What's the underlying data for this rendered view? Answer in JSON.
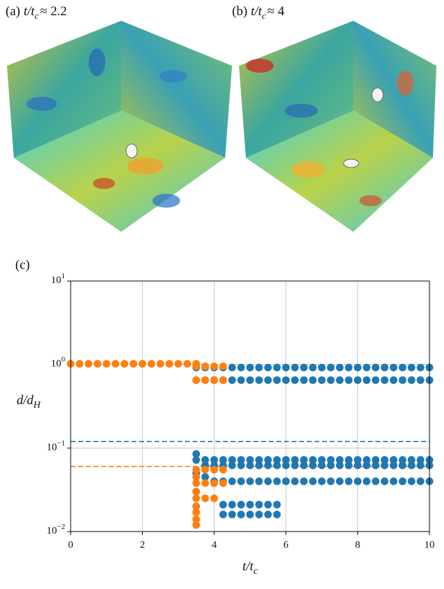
{
  "panels": [
    {
      "tag": "(a)",
      "text": "t/t",
      "sub": "c",
      "rest": "≈ 2.2"
    },
    {
      "tag": "(b)",
      "text": "t/t",
      "sub": "c",
      "rest": "≈ 4"
    }
  ],
  "chart_data": {
    "type": "scatter",
    "tag": "(c)",
    "xlabel": {
      "text": "t/t",
      "sub": "c"
    },
    "ylabel": {
      "text": "d/d",
      "sub": "H"
    },
    "xlim": [
      0,
      10
    ],
    "xticks": [
      0,
      2,
      4,
      6,
      8,
      10
    ],
    "ylim": [
      0.01,
      10
    ],
    "yticks": [
      {
        "value": 0.01,
        "label": "10",
        "exponent": "−2"
      },
      {
        "value": 0.1,
        "label": "10",
        "exponent": "−1"
      },
      {
        "value": 1,
        "label": "10",
        "exponent": "0"
      },
      {
        "value": 10,
        "label": "10",
        "exponent": "1"
      }
    ],
    "log_y": true,
    "grid": true,
    "hlines": [
      {
        "value": 0.12,
        "color": "#1f77b4",
        "dashed": true
      },
      {
        "value": 0.06,
        "color": "#ff7f0e",
        "dashed": true
      }
    ],
    "series": [
      {
        "color": "#1f77b4",
        "x": [
          3.5,
          3.75,
          4,
          4.25,
          4.5,
          4.75,
          5,
          5.25,
          5.5,
          5.75,
          6,
          6.25,
          6.5,
          6.75,
          7,
          7.25,
          7.5,
          7.75,
          8,
          8.25,
          8.5,
          8.75,
          9,
          9.25,
          9.5,
          9.75,
          10
        ],
        "values": [
          0.92,
          0.92,
          0.92,
          0.92,
          0.92,
          0.92,
          0.92,
          0.92,
          0.92,
          0.92,
          0.92,
          0.92,
          0.92,
          0.92,
          0.92,
          0.92,
          0.92,
          0.92,
          0.92,
          0.92,
          0.92,
          0.92,
          0.92,
          0.92,
          0.92,
          0.92,
          0.92
        ]
      },
      {
        "color": "#1f77b4",
        "x": [
          3.5,
          3.75,
          4,
          4.25,
          4.5,
          4.75,
          5,
          5.25,
          5.5,
          5.75,
          6,
          6.25,
          6.5,
          6.75,
          7,
          7.25,
          7.5,
          7.75,
          8,
          8.25,
          8.5,
          8.75,
          9,
          9.25,
          9.5,
          9.75,
          10
        ],
        "values": [
          0.65,
          0.65,
          0.65,
          0.65,
          0.65,
          0.65,
          0.65,
          0.65,
          0.65,
          0.65,
          0.65,
          0.65,
          0.65,
          0.65,
          0.65,
          0.65,
          0.65,
          0.65,
          0.65,
          0.65,
          0.65,
          0.65,
          0.65,
          0.65,
          0.65,
          0.65,
          0.65
        ]
      },
      {
        "color": "#1f77b4",
        "x": [
          3.5,
          3.75,
          4,
          4.25,
          4.5,
          4.75,
          5,
          5.25,
          5.5,
          5.75,
          6,
          6.25,
          6.5,
          6.75,
          7,
          7.25,
          7.5,
          7.75,
          8,
          8.25,
          8.5,
          8.75,
          9,
          9.25,
          9.5,
          9.75,
          10
        ],
        "values": [
          0.072,
          0.072,
          0.072,
          0.072,
          0.072,
          0.072,
          0.072,
          0.072,
          0.072,
          0.072,
          0.072,
          0.072,
          0.072,
          0.072,
          0.072,
          0.072,
          0.072,
          0.072,
          0.072,
          0.072,
          0.072,
          0.072,
          0.072,
          0.072,
          0.072,
          0.072,
          0.072
        ]
      },
      {
        "color": "#1f77b4",
        "x": [
          3.75,
          4,
          4.25,
          4.5,
          4.75,
          5,
          5.25,
          5.5,
          5.75,
          6,
          6.25,
          6.5,
          6.75,
          7,
          7.25,
          7.5,
          7.75,
          8,
          8.25,
          8.5,
          8.75,
          9,
          9.25,
          9.5,
          9.75,
          10
        ],
        "values": [
          0.062,
          0.062,
          0.062,
          0.062,
          0.062,
          0.062,
          0.062,
          0.062,
          0.062,
          0.062,
          0.062,
          0.062,
          0.062,
          0.062,
          0.062,
          0.062,
          0.062,
          0.062,
          0.062,
          0.062,
          0.062,
          0.062,
          0.062,
          0.062,
          0.062,
          0.062
        ]
      },
      {
        "color": "#1f77b4",
        "x": [
          4,
          4.25,
          4.5,
          4.75,
          5,
          5.25,
          5.5,
          5.75,
          6,
          6.25,
          6.5,
          6.75,
          7,
          7.25,
          7.5,
          7.75,
          8,
          8.25,
          8.5,
          8.75,
          9,
          9.25,
          9.5,
          9.75,
          10
        ],
        "values": [
          0.04,
          0.04,
          0.04,
          0.04,
          0.04,
          0.04,
          0.04,
          0.04,
          0.04,
          0.04,
          0.04,
          0.04,
          0.04,
          0.04,
          0.04,
          0.04,
          0.04,
          0.04,
          0.04,
          0.04,
          0.04,
          0.04,
          0.04,
          0.04,
          0.04
        ]
      },
      {
        "color": "#1f77b4",
        "x": [
          4.25,
          4.5,
          4.75,
          5,
          5.25,
          5.5,
          5.75,
          4.25,
          4.5,
          4.75,
          5,
          5.25,
          5.5,
          5.75
        ],
        "values": [
          0.021,
          0.021,
          0.021,
          0.021,
          0.021,
          0.021,
          0.021,
          0.016,
          0.016,
          0.016,
          0.016,
          0.016,
          0.016,
          0.016
        ]
      },
      {
        "color": "#1f77b4",
        "x": [
          3.5,
          3.5,
          3.5,
          3.5,
          3.75
        ],
        "values": [
          0.085,
          0.05,
          0.03,
          0.02,
          0.045
        ]
      },
      {
        "color": "#ff7f0e",
        "x": [
          0,
          0.25,
          0.5,
          0.75,
          1,
          1.25,
          1.5,
          1.75,
          2,
          2.25,
          2.5,
          2.75,
          3,
          3.25,
          3.5
        ],
        "values": [
          1.02,
          1.02,
          1.02,
          1.02,
          1.02,
          1.02,
          1.02,
          1.02,
          1.02,
          1.02,
          1.02,
          1.02,
          1.02,
          1.02,
          1.02
        ]
      },
      {
        "color": "#ff7f0e",
        "x": [
          3.5,
          3.75,
          4,
          4.25,
          3.5,
          3.75,
          4,
          4.25
        ],
        "values": [
          0.95,
          0.95,
          0.95,
          0.95,
          0.65,
          0.65,
          0.65,
          0.65
        ]
      },
      {
        "color": "#ff7f0e",
        "x": [
          3.5,
          3.75,
          4,
          4.25,
          3.5,
          3.75,
          4,
          4.25,
          3.5,
          3.75,
          4,
          3.5,
          3.5,
          3.5,
          3.5,
          3.5,
          3.5
        ],
        "values": [
          0.055,
          0.055,
          0.055,
          0.055,
          0.038,
          0.038,
          0.038,
          0.038,
          0.025,
          0.025,
          0.025,
          0.012,
          0.014,
          0.017,
          0.02,
          0.03,
          0.045
        ]
      }
    ]
  }
}
